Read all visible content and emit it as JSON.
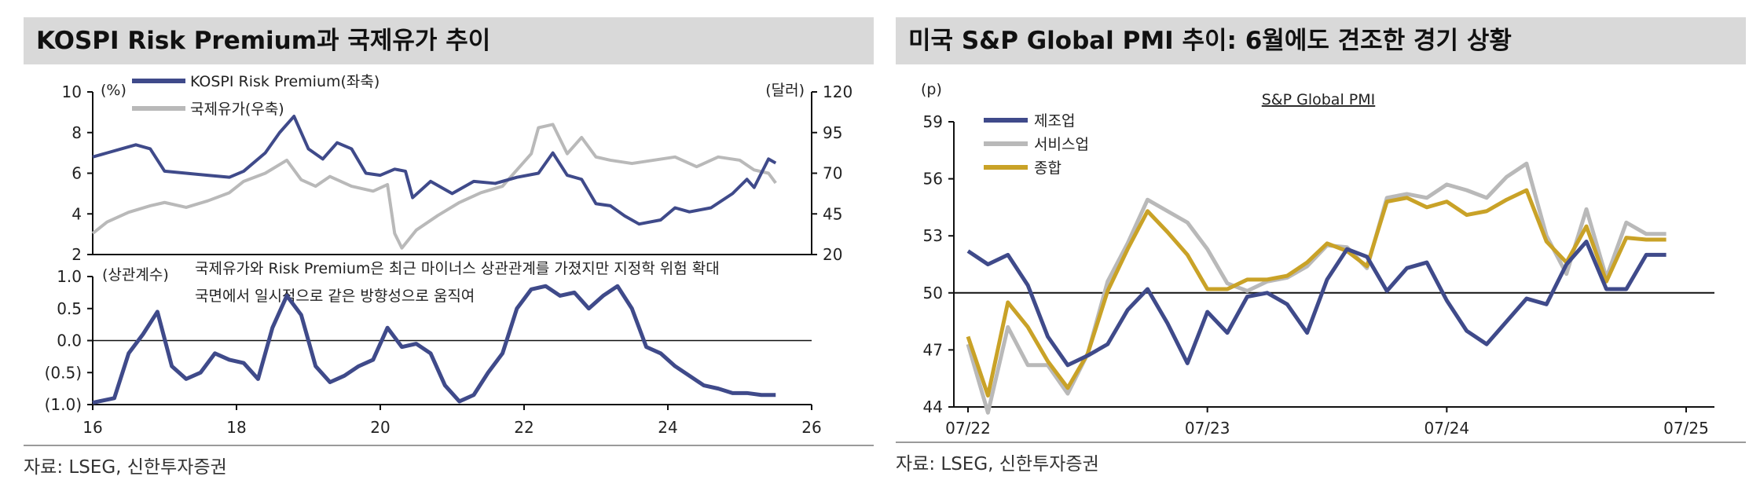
{
  "left_panel": {
    "title": "KOSPI Risk Premium과 국제유가 추이",
    "source": "자료: LSEG, 신한투자증권"
  },
  "right_panel": {
    "title": "미국 S&P Global PMI 추이: 6월에도 견조한 경기 상황",
    "source": "자료: LSEG, 신한투자증권"
  },
  "colors": {
    "navy": "#3f4a8a",
    "gray": "#b9b9b9",
    "gold": "#c9a227",
    "axis": "#111111"
  },
  "chart_data": [
    {
      "id": "risk-premium-oil",
      "type": "line",
      "title": "KOSPI Risk Premium과 국제유가 추이",
      "left_unit": "(%)",
      "right_unit": "(달러)",
      "left_ticks": [
        10,
        8,
        6,
        4,
        2
      ],
      "right_ticks": [
        120,
        95,
        70,
        45,
        20
      ],
      "ylim_left": [
        2,
        10
      ],
      "ylim_right": [
        20,
        120
      ],
      "xlim": [
        16,
        26
      ],
      "series": [
        {
          "name": "KOSPI Risk Premium(좌축)",
          "axis": "left",
          "color": "navy",
          "x": [
            16.0,
            16.2,
            16.4,
            16.6,
            16.8,
            17.0,
            17.3,
            17.6,
            17.9,
            18.1,
            18.4,
            18.6,
            18.8,
            19.0,
            19.2,
            19.4,
            19.6,
            19.8,
            20.0,
            20.2,
            20.35,
            20.45,
            20.7,
            21.0,
            21.3,
            21.6,
            21.9,
            22.2,
            22.4,
            22.6,
            22.8,
            23.0,
            23.2,
            23.4,
            23.6,
            23.9,
            24.1,
            24.3,
            24.6,
            24.9,
            25.1,
            25.2,
            25.4,
            25.5
          ],
          "values": [
            6.8,
            7.0,
            7.2,
            7.4,
            7.2,
            6.1,
            6.0,
            5.9,
            5.8,
            6.1,
            7.0,
            8.0,
            8.8,
            7.2,
            6.7,
            7.5,
            7.2,
            6.0,
            5.9,
            6.2,
            6.1,
            4.8,
            5.6,
            5.0,
            5.6,
            5.5,
            5.8,
            6.0,
            7.0,
            5.9,
            5.7,
            4.5,
            4.4,
            3.9,
            3.5,
            3.7,
            4.3,
            4.1,
            4.3,
            5.0,
            5.7,
            5.3,
            6.7,
            6.5
          ]
        },
        {
          "name": "국제유가(우축)",
          "axis": "right",
          "color": "gray",
          "x": [
            16.0,
            16.2,
            16.5,
            16.8,
            17.0,
            17.3,
            17.6,
            17.9,
            18.1,
            18.4,
            18.7,
            18.9,
            19.1,
            19.3,
            19.6,
            19.9,
            20.1,
            20.2,
            20.3,
            20.5,
            20.8,
            21.1,
            21.4,
            21.7,
            21.9,
            22.1,
            22.2,
            22.4,
            22.6,
            22.8,
            23.0,
            23.2,
            23.5,
            23.8,
            24.1,
            24.4,
            24.7,
            25.0,
            25.2,
            25.4,
            25.5
          ],
          "values": [
            33,
            40,
            46,
            50,
            52,
            49,
            53,
            58,
            65,
            70,
            78,
            66,
            62,
            68,
            62,
            59,
            63,
            33,
            24,
            35,
            44,
            52,
            58,
            62,
            72,
            82,
            98,
            100,
            82,
            92,
            80,
            78,
            76,
            78,
            80,
            74,
            80,
            78,
            72,
            70,
            64
          ]
        }
      ],
      "annotation": "국제유가와 Risk Premium은 최근 마이너스 상관관계를 가졌지만 지정학 위험 확대 국면에서 일시적으로 같은 방향성으로 움직여"
    },
    {
      "id": "correlation",
      "type": "line",
      "ylabel": "(상관계수)",
      "ticks": [
        1.0,
        0.5,
        0.0,
        -0.5,
        -1.0
      ],
      "tick_labels": [
        "1.0",
        "0.5",
        "0.0",
        "(0.5)",
        "(1.0)"
      ],
      "ylim": [
        -1.0,
        1.0
      ],
      "xlim": [
        16,
        26
      ],
      "x_ticks": [
        16,
        18,
        20,
        22,
        24,
        26
      ],
      "series": [
        {
          "name": "상관계수",
          "color": "navy",
          "x": [
            16.0,
            16.3,
            16.5,
            16.7,
            16.9,
            17.1,
            17.3,
            17.5,
            17.7,
            17.9,
            18.1,
            18.3,
            18.5,
            18.7,
            18.9,
            19.1,
            19.3,
            19.5,
            19.7,
            19.9,
            20.1,
            20.3,
            20.5,
            20.7,
            20.9,
            21.1,
            21.3,
            21.5,
            21.7,
            21.9,
            22.1,
            22.3,
            22.5,
            22.7,
            22.9,
            23.1,
            23.3,
            23.5,
            23.7,
            23.9,
            24.1,
            24.3,
            24.5,
            24.7,
            24.9,
            25.1,
            25.3,
            25.5
          ],
          "values": [
            -0.97,
            -0.9,
            -0.2,
            0.1,
            0.45,
            -0.4,
            -0.6,
            -0.5,
            -0.2,
            -0.3,
            -0.35,
            -0.6,
            0.2,
            0.7,
            0.4,
            -0.4,
            -0.65,
            -0.55,
            -0.4,
            -0.3,
            0.2,
            -0.1,
            -0.05,
            -0.2,
            -0.7,
            -0.95,
            -0.85,
            -0.5,
            -0.2,
            0.5,
            0.8,
            0.85,
            0.7,
            0.75,
            0.5,
            0.7,
            0.85,
            0.5,
            -0.1,
            -0.2,
            -0.4,
            -0.55,
            -0.7,
            -0.75,
            -0.82,
            -0.82,
            -0.85,
            -0.85
          ]
        }
      ]
    },
    {
      "id": "sp-global-pmi",
      "type": "line",
      "title": "S&P Global PMI",
      "ylabel": "(p)",
      "ylim": [
        44,
        59
      ],
      "y_ticks": [
        59,
        56,
        53,
        50,
        47,
        44
      ],
      "reference_line": 50,
      "x_tick_labels": [
        "07/22",
        "07/23",
        "07/24",
        "07/25"
      ],
      "x_tick_index": [
        0,
        12,
        24,
        36
      ],
      "series": [
        {
          "name": "제조업",
          "color": "navy",
          "values": [
            52.2,
            51.5,
            52.0,
            50.4,
            47.7,
            46.2,
            46.7,
            47.3,
            49.1,
            50.2,
            48.4,
            46.3,
            49.0,
            47.9,
            49.8,
            50.0,
            49.4,
            47.9,
            50.7,
            52.3,
            51.9,
            50.1,
            51.3,
            51.6,
            49.6,
            48.0,
            47.3,
            48.5,
            49.7,
            49.4,
            51.5,
            52.7,
            50.2,
            50.2,
            52.0,
            52.0
          ]
        },
        {
          "name": "서비스업",
          "color": "gray",
          "values": [
            47.3,
            43.7,
            48.2,
            46.2,
            46.2,
            44.7,
            46.8,
            50.6,
            52.6,
            54.9,
            54.3,
            53.7,
            52.3,
            50.5,
            50.1,
            50.6,
            50.8,
            51.4,
            52.5,
            52.4,
            51.3,
            55.0,
            55.2,
            55.0,
            55.7,
            55.4,
            55.0,
            56.1,
            56.8,
            53.0,
            51.0,
            54.4,
            50.8,
            53.7,
            53.1,
            53.1
          ]
        },
        {
          "name": "종합",
          "color": "gold",
          "values": [
            47.7,
            44.6,
            49.5,
            48.2,
            46.4,
            45.0,
            46.8,
            50.1,
            52.3,
            54.3,
            53.2,
            52.0,
            50.2,
            50.2,
            50.7,
            50.7,
            50.9,
            51.6,
            52.6,
            52.2,
            51.4,
            54.8,
            55.0,
            54.5,
            54.8,
            54.1,
            54.3,
            54.9,
            55.4,
            52.7,
            51.6,
            53.5,
            50.6,
            52.9,
            52.8,
            52.8
          ]
        }
      ]
    }
  ]
}
